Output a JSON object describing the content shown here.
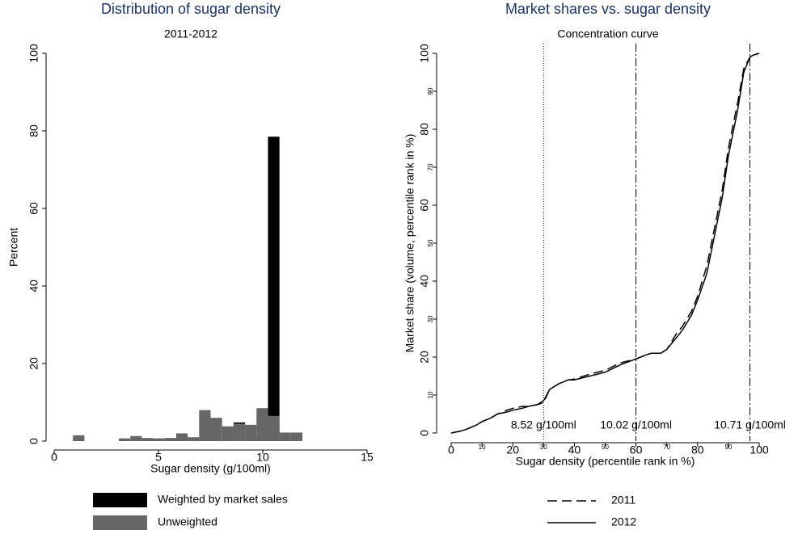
{
  "chart_data": [
    {
      "type": "histogram",
      "title": "Distribution of sugar density",
      "subtitle": "2011-2012",
      "x_label": "Sugar density (g/100ml)",
      "y_label": "Percent",
      "bins": [
        0.9,
        1.45,
        2.0,
        2.55,
        3.1,
        3.65,
        4.2,
        4.75,
        5.3,
        5.85,
        6.4,
        6.95,
        7.5,
        8.05,
        8.6,
        9.15,
        9.7,
        10.25,
        10.8,
        11.35,
        11.9
      ],
      "series": [
        {
          "name": "Weighted by market sales",
          "color": "#000000",
          "values": [
            0,
            0,
            0,
            0,
            0,
            0,
            0,
            0,
            0,
            0,
            0,
            0,
            0,
            0,
            4.8,
            0,
            1,
            78.5,
            0,
            0
          ]
        },
        {
          "name": "Unweighted",
          "color": "#666666",
          "values": [
            1.5,
            0,
            0,
            0,
            0.7,
            1.3,
            0.8,
            0.7,
            0.8,
            2.0,
            1.0,
            8.0,
            6.0,
            3.8,
            4.5,
            4.2,
            8.5,
            6.5,
            2.2,
            2.2
          ]
        }
      ],
      "xlim": [
        0,
        15
      ],
      "xticks": [
        0,
        5,
        10,
        15
      ],
      "ylim": [
        0,
        100
      ],
      "yticks": [
        0,
        20,
        40,
        60,
        80,
        100
      ]
    },
    {
      "type": "line",
      "title": "Market shares vs. sugar density",
      "subtitle": "Concentration curve",
      "x_label": "Sugar density (percentile rank in %)",
      "y_label": "Market share (volume, percentile rank in %)",
      "x": [
        0,
        3,
        5,
        8,
        10,
        13,
        15,
        18,
        20,
        23,
        25,
        28,
        30,
        32,
        35,
        38,
        40,
        45,
        50,
        55,
        60,
        63,
        65,
        68,
        70,
        73,
        75,
        78,
        80,
        83,
        85,
        88,
        90,
        93,
        95,
        97,
        98,
        100
      ],
      "series": [
        {
          "name": "2011",
          "color": "#000000",
          "dash": "dashed",
          "values": [
            0,
            0.5,
            1,
            2,
            3,
            4,
            5,
            6,
            6.5,
            7,
            7,
            7.5,
            8,
            11.5,
            13,
            14,
            14.2,
            15.5,
            16.5,
            18.5,
            19.5,
            20.5,
            21,
            21,
            22,
            26,
            28,
            32,
            36,
            44,
            52,
            64,
            75,
            87,
            96,
            99,
            99.5,
            100
          ]
        },
        {
          "name": "2012",
          "color": "#000000",
          "dash": "solid",
          "values": [
            0,
            0.5,
            1,
            2,
            3,
            4,
            5,
            5.5,
            6,
            6.5,
            7,
            7.5,
            8.5,
            11.5,
            13,
            14,
            14,
            15,
            16,
            18,
            19.5,
            20.5,
            21,
            21,
            22,
            25,
            27,
            31,
            35,
            42,
            50,
            62,
            73,
            85,
            95,
            99,
            99.5,
            100
          ]
        }
      ],
      "vlines": [
        {
          "x": 30,
          "style": "dotted",
          "label": "8.52 g/100ml"
        },
        {
          "x": 60,
          "style": "dashdot",
          "label": "10.02 g/100ml"
        },
        {
          "x": 97,
          "style": "dashdot",
          "label": "10.71 g/100ml"
        }
      ],
      "xlim": [
        0,
        100
      ],
      "xticks": [
        0,
        20,
        40,
        60,
        80,
        100
      ],
      "xticks_minor": [
        10,
        30,
        50,
        70,
        90
      ],
      "ylim": [
        0,
        100
      ],
      "yticks": [
        0,
        20,
        40,
        60,
        80,
        100
      ],
      "yticks_minor": [
        10,
        30,
        50,
        70,
        90
      ]
    }
  ]
}
